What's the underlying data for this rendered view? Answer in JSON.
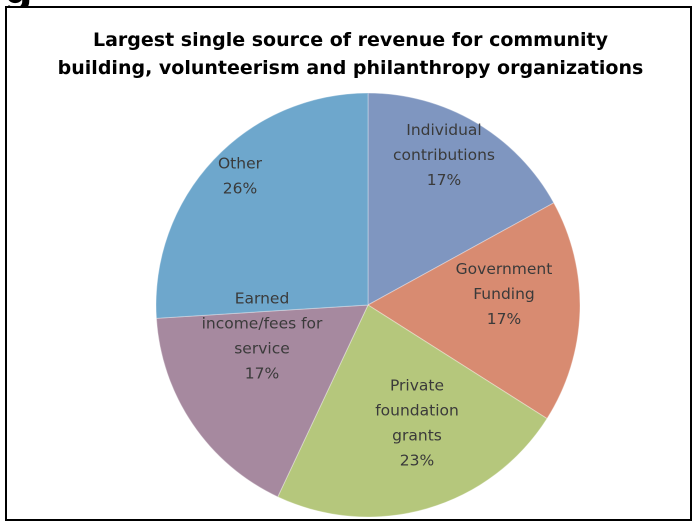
{
  "header_fragment": "g",
  "chart_data": {
    "type": "pie",
    "title": [
      "Largest single source of revenue for community",
      "building, volunteerism and philanthropy organizations"
    ],
    "slices": [
      {
        "label": [
          "Individual",
          "contributions",
          "17%"
        ],
        "value": 17,
        "color": "#7f96c0"
      },
      {
        "label": [
          "Government",
          "Funding",
          "17%"
        ],
        "value": 17,
        "color": "#d88b71"
      },
      {
        "label": [
          "Private",
          "foundation",
          "grants",
          "23%"
        ],
        "value": 23,
        "color": "#b5c77c"
      },
      {
        "label": [
          "Earned",
          "income/fees for",
          "service",
          "17%"
        ],
        "value": 17,
        "color": "#a6899f"
      },
      {
        "label": [
          "Other",
          "26%"
        ],
        "value": 26,
        "color": "#6ea7cc"
      }
    ]
  }
}
